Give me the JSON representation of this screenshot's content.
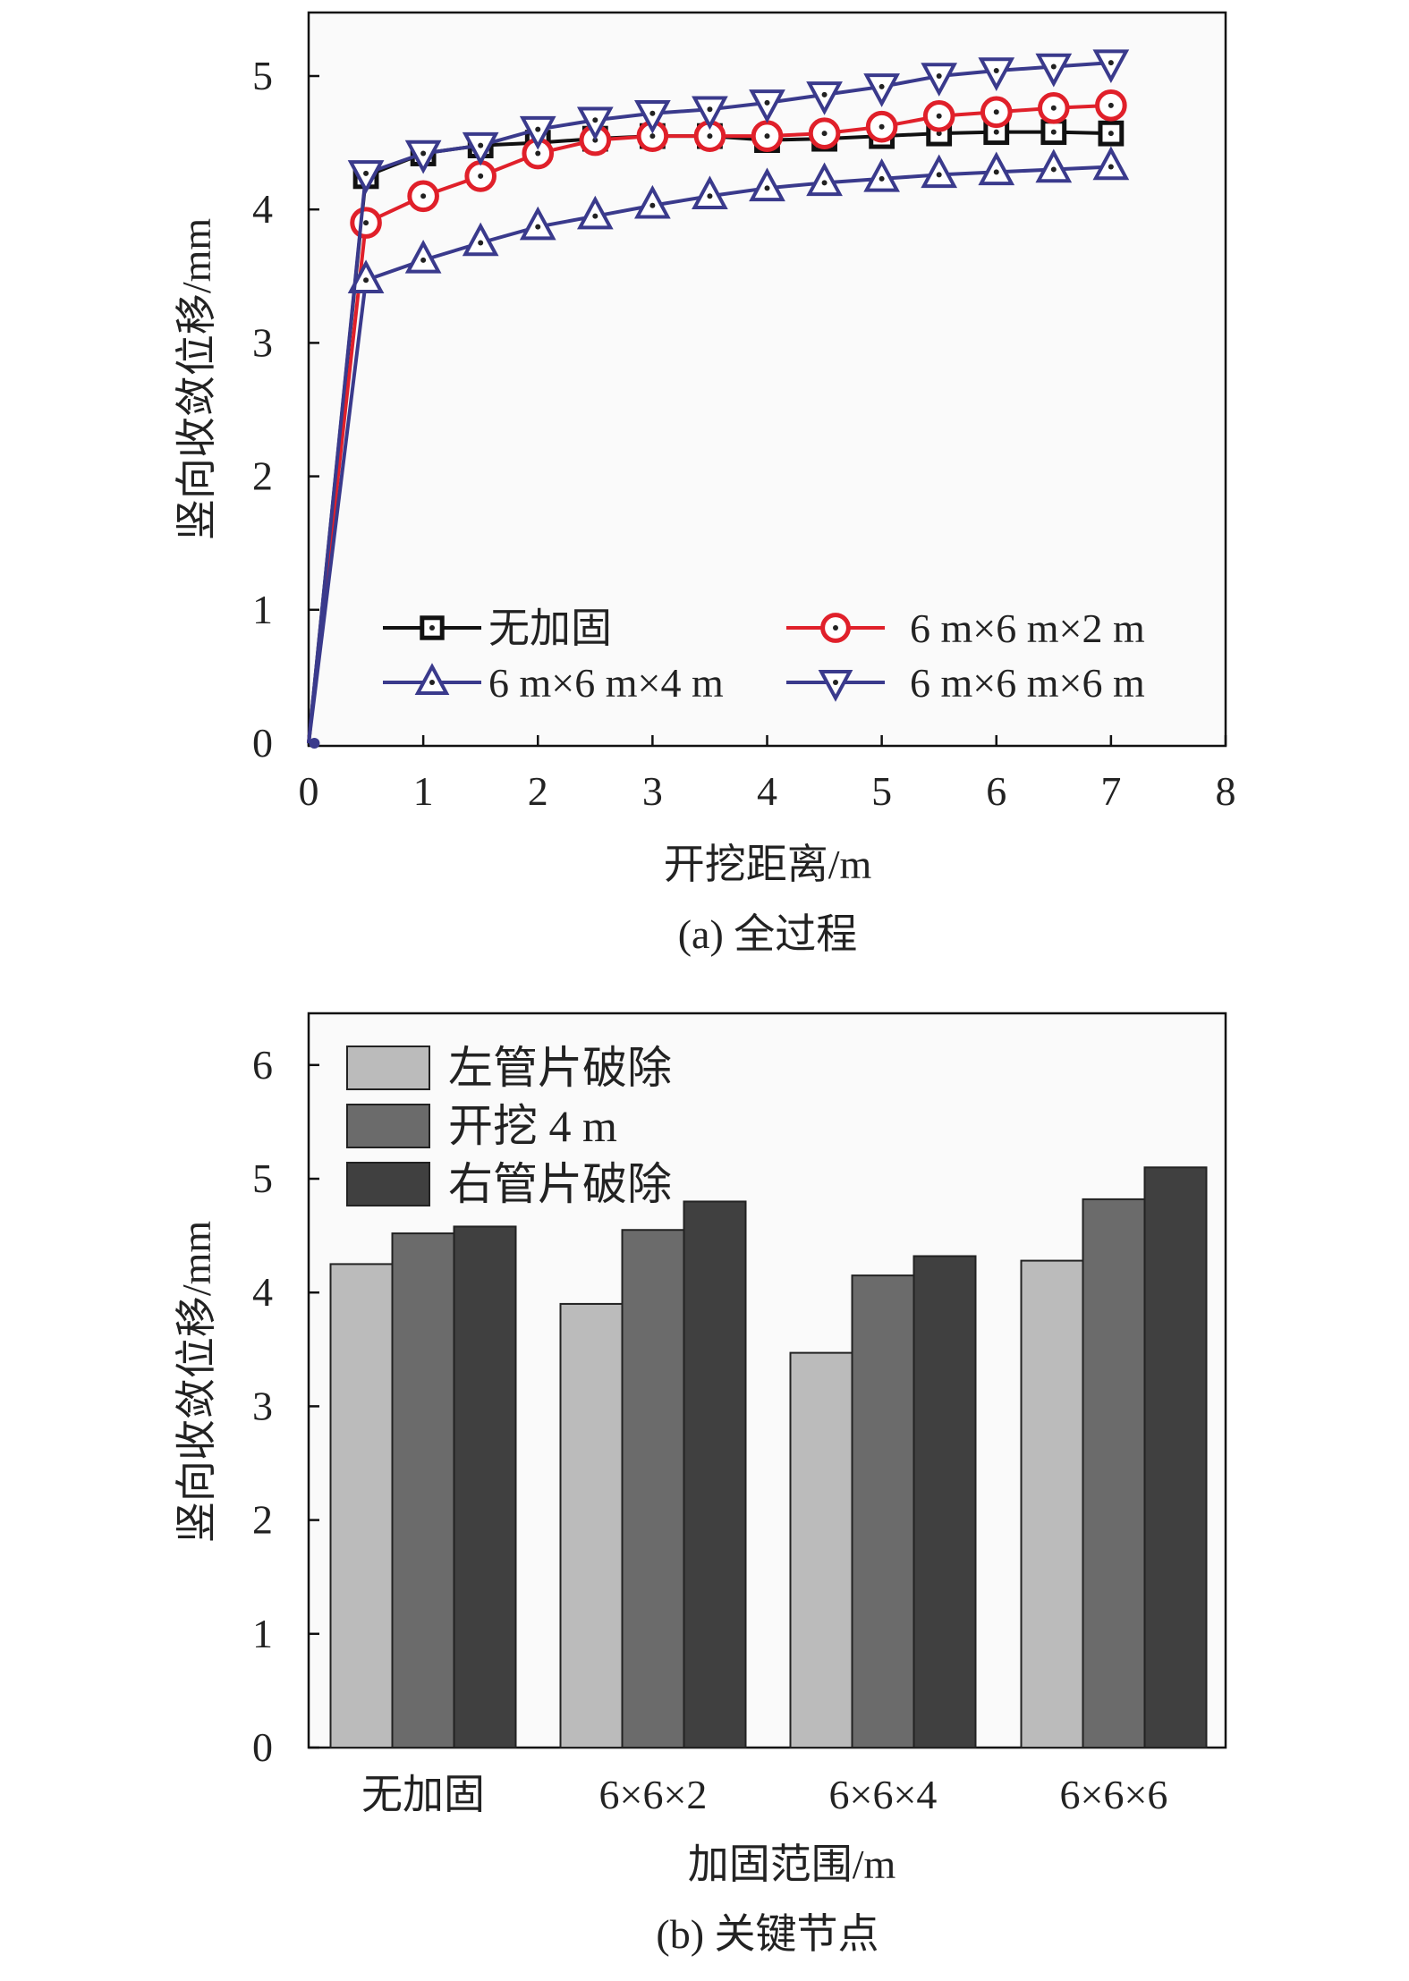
{
  "chart_data": [
    {
      "type": "line",
      "caption": "(a) 全过程",
      "xlabel": "开挖距离/m",
      "ylabel": "竖向收敛位移/mm",
      "xlim": [
        0,
        8
      ],
      "ylim": [
        0,
        5.5
      ],
      "xticks": [
        "0",
        "1",
        "2",
        "3",
        "4",
        "5",
        "6",
        "7",
        "8"
      ],
      "yticks": [
        "0",
        "1",
        "2",
        "3",
        "4",
        "5"
      ],
      "x": [
        0,
        0.5,
        1,
        1.5,
        2,
        2.5,
        3,
        3.5,
        4,
        4.5,
        5,
        5.5,
        6,
        6.5,
        7
      ],
      "legend_placement": "lower-center",
      "series": [
        {
          "name": "无加固",
          "marker": "square",
          "color": "#111111",
          "values": [
            0,
            4.25,
            4.42,
            4.48,
            4.5,
            4.53,
            4.55,
            4.55,
            4.52,
            4.53,
            4.55,
            4.57,
            4.58,
            4.58,
            4.57
          ]
        },
        {
          "name": "6 m×6 m×2 m",
          "marker": "circle",
          "color": "#e0202a",
          "values": [
            0,
            3.9,
            4.1,
            4.25,
            4.42,
            4.52,
            4.55,
            4.55,
            4.55,
            4.57,
            4.62,
            4.7,
            4.73,
            4.76,
            4.78
          ]
        },
        {
          "name": "6 m×6 m×4 m",
          "marker": "triangle-up",
          "color": "#3a3a8c",
          "values": [
            0,
            3.47,
            3.62,
            3.75,
            3.87,
            3.95,
            4.03,
            4.1,
            4.16,
            4.2,
            4.23,
            4.26,
            4.28,
            4.3,
            4.32
          ]
        },
        {
          "name": "6 m×6 m×6 m",
          "marker": "triangle-down",
          "color": "#3a3a8c",
          "values": [
            0,
            4.27,
            4.42,
            4.48,
            4.6,
            4.67,
            4.72,
            4.75,
            4.8,
            4.86,
            4.92,
            5.0,
            5.04,
            5.07,
            5.1
          ]
        }
      ]
    },
    {
      "type": "bar",
      "caption": "(b) 关键节点",
      "xlabel": "加固范围/m",
      "ylabel": "竖向收敛位移/mm",
      "ylim": [
        0,
        6.5
      ],
      "yticks": [
        "0",
        "1",
        "2",
        "3",
        "4",
        "5",
        "6"
      ],
      "categories": [
        "无加固",
        "6×6×2",
        "6×6×4",
        "6×6×6"
      ],
      "legend_placement": "top-left",
      "series": [
        {
          "name": "左管片破除",
          "color": "#bbbbbb",
          "values": [
            4.25,
            3.9,
            3.47,
            4.28
          ]
        },
        {
          "name": "开挖 4 m",
          "color": "#6b6b6b",
          "values": [
            4.52,
            4.55,
            4.15,
            4.82
          ]
        },
        {
          "name": "右管片破除",
          "color": "#404040",
          "values": [
            4.58,
            4.8,
            4.32,
            5.1
          ]
        }
      ]
    }
  ]
}
